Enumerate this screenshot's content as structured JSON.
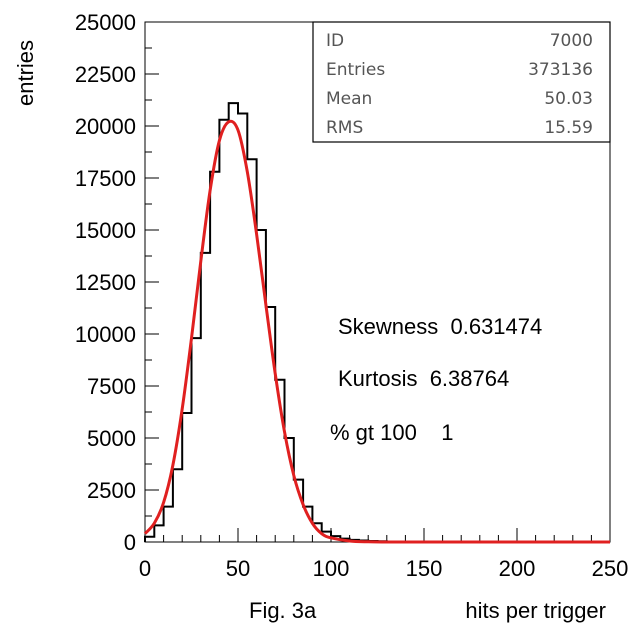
{
  "chart_data": {
    "type": "histogram",
    "xlabel": "hits per trigger",
    "ylabel": "entries",
    "caption": "Fig. 3a",
    "xlim": [
      0,
      250
    ],
    "ylim": [
      0,
      25000
    ],
    "x_ticks": [
      "0",
      "50",
      "100",
      "150",
      "200",
      "250"
    ],
    "y_ticks": [
      "0",
      "2500",
      "5000",
      "7500",
      "10000",
      "12500",
      "15000",
      "17500",
      "20000",
      "22500",
      "25000"
    ],
    "grid": false,
    "stats_box": {
      "position": "top-right",
      "rows": [
        {
          "label": "ID",
          "value": "7000"
        },
        {
          "label": "Entries",
          "value": "373136"
        },
        {
          "label": "Mean",
          "value": "50.03"
        },
        {
          "label": "RMS",
          "value": "15.59"
        }
      ]
    },
    "annotations": [
      "Skewness  0.631474",
      "Kurtosis  6.38764",
      "% gt 100    1"
    ],
    "series": [
      {
        "style": "step",
        "color": "#000000",
        "x": [
          0,
          5,
          10,
          15,
          20,
          25,
          30,
          35,
          40,
          45,
          50,
          55,
          60,
          65,
          70,
          75,
          80,
          85,
          90,
          95,
          100,
          105,
          110,
          115,
          120,
          125,
          130,
          135,
          140,
          150,
          160,
          170,
          180,
          190,
          200,
          210,
          220,
          230,
          240,
          250
        ],
        "values": [
          250,
          800,
          1700,
          3500,
          6200,
          9800,
          13900,
          17800,
          20300,
          21100,
          20600,
          18400,
          15000,
          11300,
          7800,
          5000,
          3000,
          1700,
          900,
          500,
          280,
          160,
          100,
          70,
          50,
          35,
          25,
          18,
          12,
          8,
          5,
          3,
          2,
          2,
          1,
          1,
          0,
          0,
          0,
          0
        ]
      },
      {
        "style": "line",
        "color": "#e02020",
        "x": [
          0,
          5,
          10,
          15,
          20,
          25,
          30,
          35,
          40,
          45,
          50,
          55,
          60,
          65,
          70,
          75,
          80,
          85,
          90,
          95,
          100,
          110,
          120,
          130,
          140,
          150,
          175,
          200,
          225,
          250
        ],
        "values": [
          400,
          900,
          1900,
          3700,
          6400,
          9800,
          13500,
          16900,
          19300,
          20200,
          19800,
          17800,
          14800,
          11400,
          8100,
          5300,
          3200,
          1800,
          900,
          400,
          200,
          50,
          10,
          0,
          0,
          0,
          0,
          0,
          0,
          0
        ]
      }
    ]
  }
}
